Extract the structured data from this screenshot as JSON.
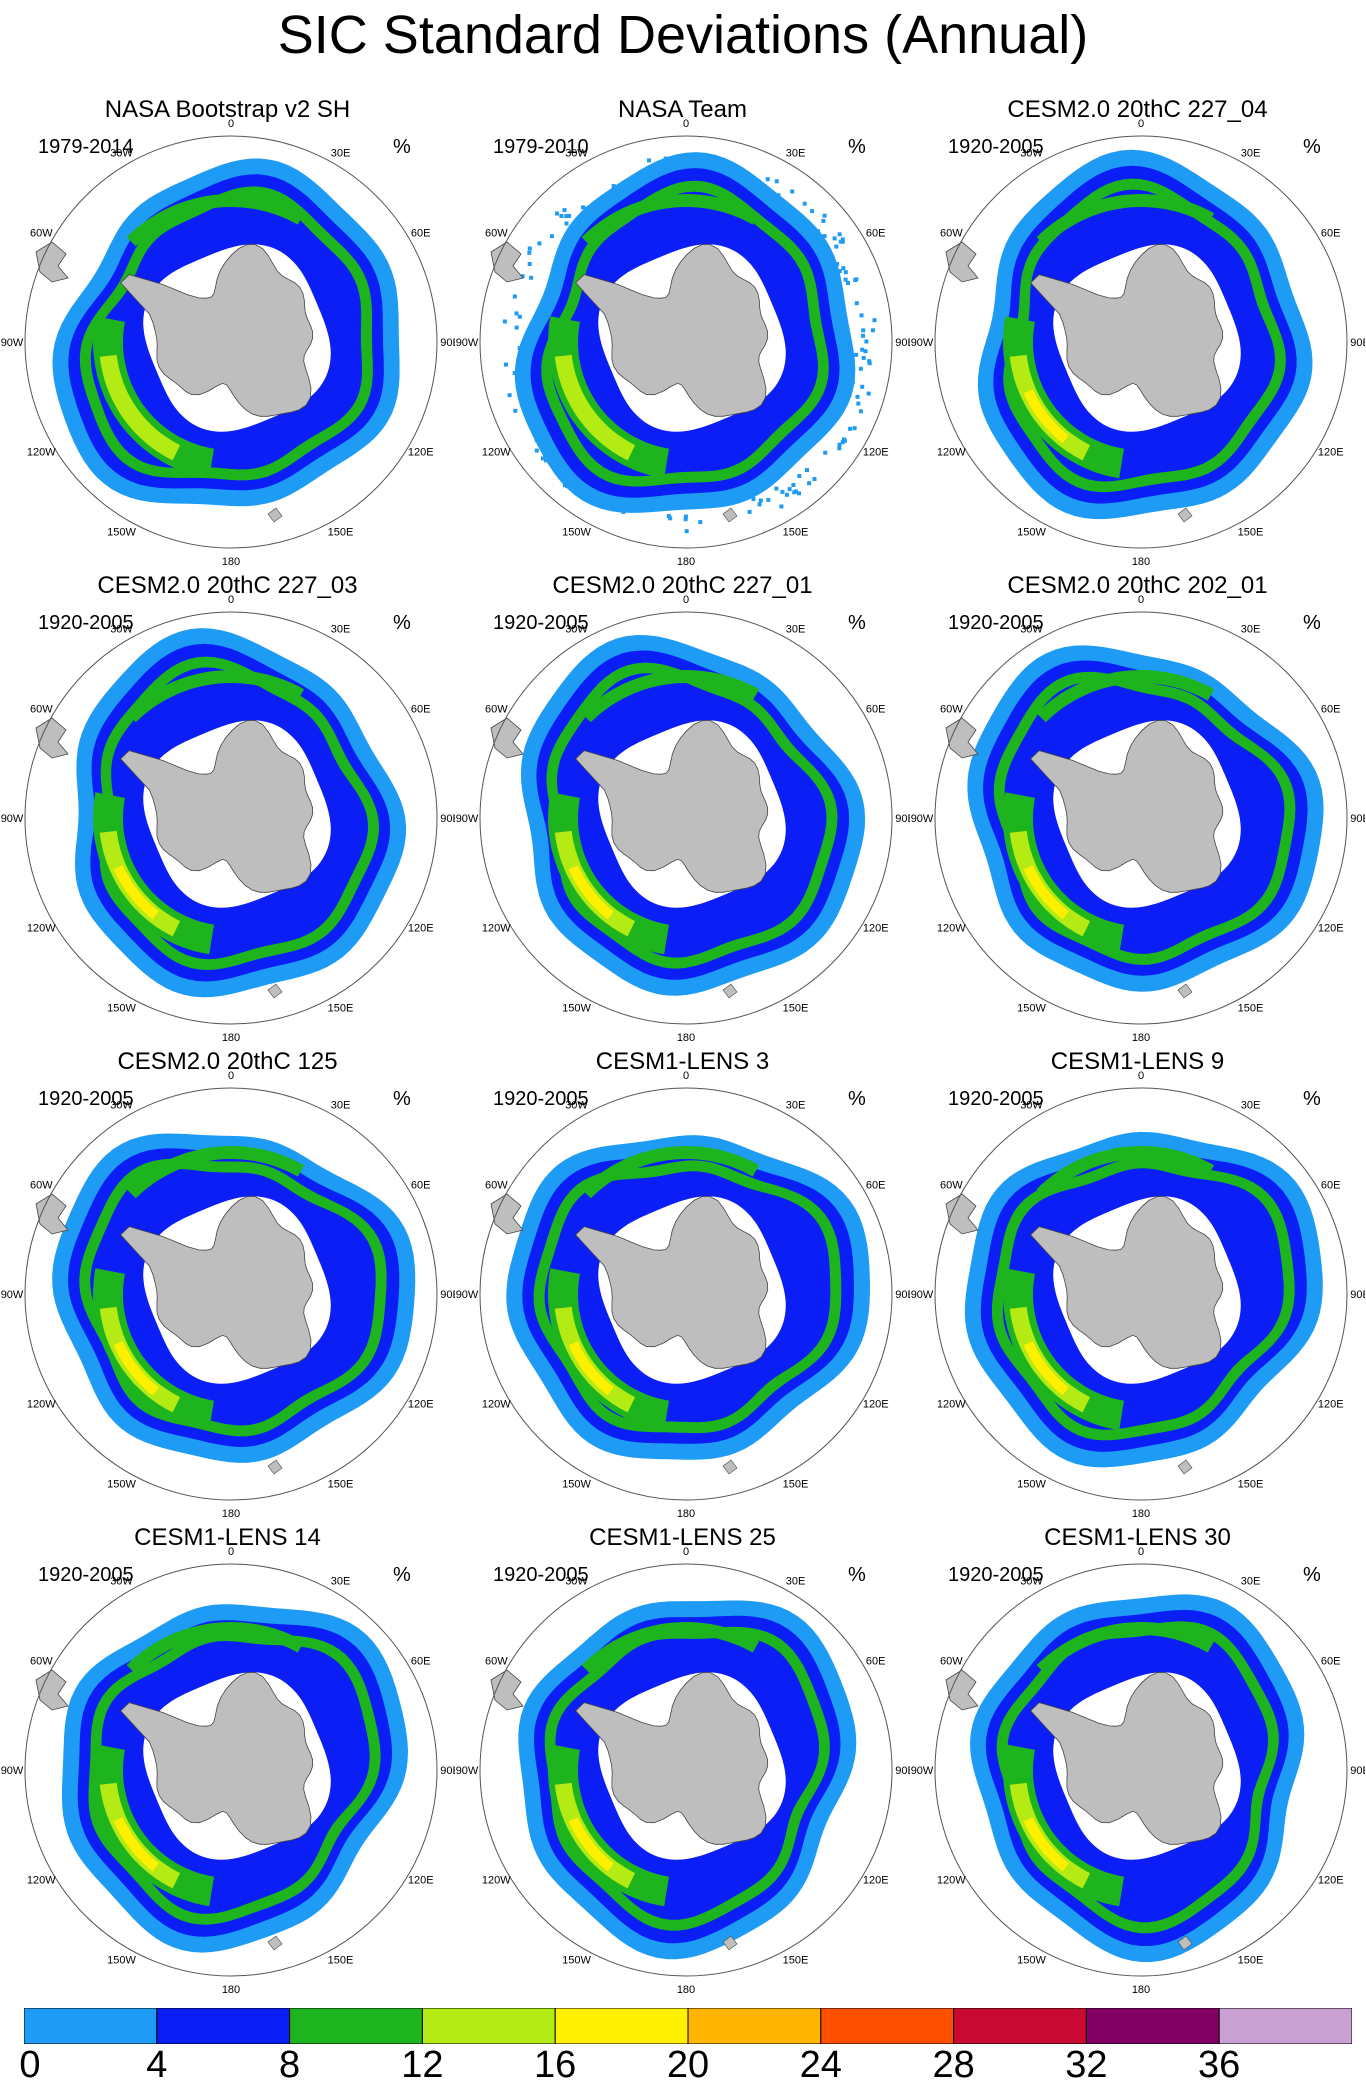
{
  "title": "SIC Standard Deviations (Annual)",
  "unit": "%",
  "panels": [
    {
      "title": "NASA Bootstrap v2 SH",
      "period": "1979-2014",
      "obs": true,
      "variant": 0
    },
    {
      "title": "NASA Team",
      "period": "1979-2010",
      "obs": true,
      "variant": 1
    },
    {
      "title": "CESM2.0 20thC 227_04",
      "period": "1920-2005",
      "obs": false,
      "variant": 2
    },
    {
      "title": "CESM2.0 20thC 227_03",
      "period": "1920-2005",
      "obs": false,
      "variant": 3
    },
    {
      "title": "CESM2.0 20thC 227_01",
      "period": "1920-2005",
      "obs": false,
      "variant": 4
    },
    {
      "title": "CESM2.0 20thC 202_01",
      "period": "1920-2005",
      "obs": false,
      "variant": 5
    },
    {
      "title": "CESM2.0 20thC 125",
      "period": "1920-2005",
      "obs": false,
      "variant": 6
    },
    {
      "title": "CESM1-LENS 3",
      "period": "1920-2005",
      "obs": false,
      "variant": 7
    },
    {
      "title": "CESM1-LENS 9",
      "period": "1920-2005",
      "obs": false,
      "variant": 8
    },
    {
      "title": "CESM1-LENS 14",
      "period": "1920-2005",
      "obs": false,
      "variant": 9
    },
    {
      "title": "CESM1-LENS 25",
      "period": "1920-2005",
      "obs": false,
      "variant": 10
    },
    {
      "title": "CESM1-LENS 30",
      "period": "1920-2005",
      "obs": false,
      "variant": 11
    }
  ],
  "longitude_labels": [
    "0",
    "30E",
    "60E",
    "90E",
    "120E",
    "150E",
    "180",
    "150W",
    "120W",
    "90W",
    "60W",
    "30W"
  ],
  "colorbar": {
    "colors": [
      "#1e9bf5",
      "#0a1ef5",
      "#1eb41e",
      "#b4eb14",
      "#fff000",
      "#ffb400",
      "#ff5000",
      "#c80a32",
      "#820064",
      "#c8a0d2"
    ],
    "labels": [
      "0",
      "4",
      "8",
      "12",
      "16",
      "20",
      "24",
      "28",
      "32",
      "36"
    ]
  },
  "colors": {
    "land": "#bebebe",
    "ocean": "#ffffff"
  }
}
